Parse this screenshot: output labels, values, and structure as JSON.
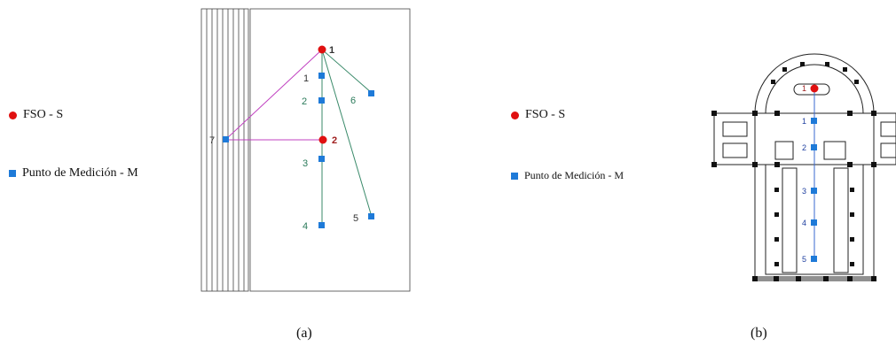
{
  "legend": {
    "source_label": "FSO - S",
    "measure_label": "Punto de Medición - M",
    "source_color": "#e01010",
    "measure_color": "#1e7ad8"
  },
  "panel_a": {
    "caption": "(a)",
    "sources": [
      "1",
      "2"
    ],
    "points": [
      "1",
      "2",
      "3",
      "4",
      "5",
      "6",
      "7"
    ]
  },
  "panel_b": {
    "caption": "(b)",
    "sources": [
      "1"
    ],
    "points": [
      "1",
      "2",
      "3",
      "4",
      "5"
    ]
  }
}
